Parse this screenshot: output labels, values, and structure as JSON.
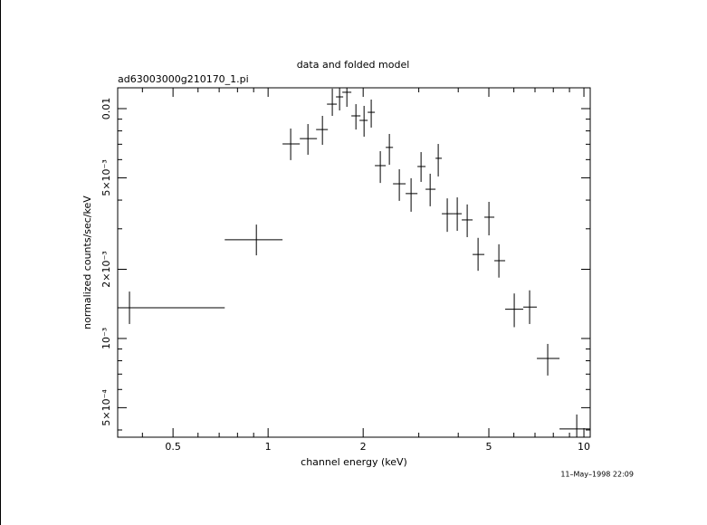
{
  "chart_data": {
    "type": "errorbar-scatter",
    "title": "data and folded model",
    "subtitle": "ad63003000g210170_1.pi",
    "xlabel": "channel energy (keV)",
    "ylabel": "normalized counts/sec/keV",
    "annotation": "11–May–1998 22:09",
    "xscale": "log",
    "yscale": "log",
    "color": "#000000",
    "xlim": [
      0.334,
      10.47
    ],
    "ylim": [
      0.000372,
      0.01232
    ],
    "xticks": [
      0.5,
      1,
      2,
      5,
      10
    ],
    "xminorticks": [
      0.4,
      0.6,
      0.7,
      0.8,
      0.9,
      3,
      4,
      6,
      7,
      8,
      9
    ],
    "yticks": [
      {
        "value": 0.0005,
        "label": "5×10⁻⁴"
      },
      {
        "value": 0.001,
        "label": "10⁻³"
      },
      {
        "value": 0.002,
        "label": "2×10⁻³"
      },
      {
        "value": 0.005,
        "label": "5×10⁻³"
      },
      0.01
    ],
    "yminorticks": [
      0.0004,
      0.0006,
      0.0007,
      0.0008,
      0.0009,
      0.003,
      0.004,
      0.006,
      0.007,
      0.008,
      0.009
    ],
    "series": [
      {
        "x": [
          0.364,
          0.918,
          1.179,
          1.337,
          1.486,
          1.597,
          1.684,
          1.776,
          1.897,
          2.013,
          2.121,
          2.266,
          2.421,
          2.603,
          2.836,
          3.05,
          3.259,
          3.457,
          3.692,
          3.971,
          4.27,
          4.622,
          5.003,
          5.379,
          6.017,
          6.73,
          7.68,
          9.49
        ],
        "x_low": [
          0.334,
          0.729,
          1.111,
          1.26,
          1.419,
          1.536,
          1.64,
          1.718,
          1.835,
          1.947,
          2.067,
          2.178,
          2.358,
          2.486,
          2.726,
          2.971,
          3.152,
          3.39,
          3.549,
          3.842,
          4.104,
          4.442,
          4.839,
          5.204,
          5.632,
          6.427,
          7.096,
          8.37
        ],
        "x_high": [
          0.729,
          1.111,
          1.26,
          1.428,
          1.546,
          1.651,
          1.729,
          1.835,
          1.961,
          2.067,
          2.178,
          2.358,
          2.486,
          2.726,
          2.971,
          3.152,
          3.39,
          3.549,
          3.842,
          4.104,
          4.442,
          4.839,
          5.204,
          5.632,
          6.427,
          7.096,
          8.37,
          10.47
        ],
        "y": [
          0.00136,
          0.00269,
          0.00702,
          0.00741,
          0.00811,
          0.01046,
          0.01125,
          0.01178,
          0.0093,
          0.00889,
          0.00964,
          0.00565,
          0.00678,
          0.00471,
          0.00427,
          0.0056,
          0.00446,
          0.00608,
          0.00349,
          0.00349,
          0.00328,
          0.00232,
          0.00337,
          0.00218,
          0.00134,
          0.00137,
          0.000819,
          0.000404
        ],
        "y_low": [
          0.001156,
          0.0023,
          0.00597,
          0.0063,
          0.00696,
          0.0093,
          0.00982,
          0.01018,
          0.00811,
          0.00755,
          0.00827,
          0.00475,
          0.0057,
          0.00397,
          0.00356,
          0.0048,
          0.00376,
          0.00507,
          0.00291,
          0.00294,
          0.00276,
          0.00197,
          0.00281,
          0.00184,
          0.00112,
          0.001156,
          0.00069,
          0.000372
        ],
        "y_high": [
          0.0016,
          0.00313,
          0.00819,
          0.00857,
          0.0093,
          0.01222,
          0.0123,
          0.0123,
          0.01046,
          0.01028,
          0.01095,
          0.00653,
          0.00776,
          0.00545,
          0.00498,
          0.00647,
          0.00521,
          0.00702,
          0.00407,
          0.00411,
          0.00383,
          0.00274,
          0.00393,
          0.00257,
          0.00157,
          0.00162,
          0.000947,
          0.000467
        ]
      }
    ]
  }
}
